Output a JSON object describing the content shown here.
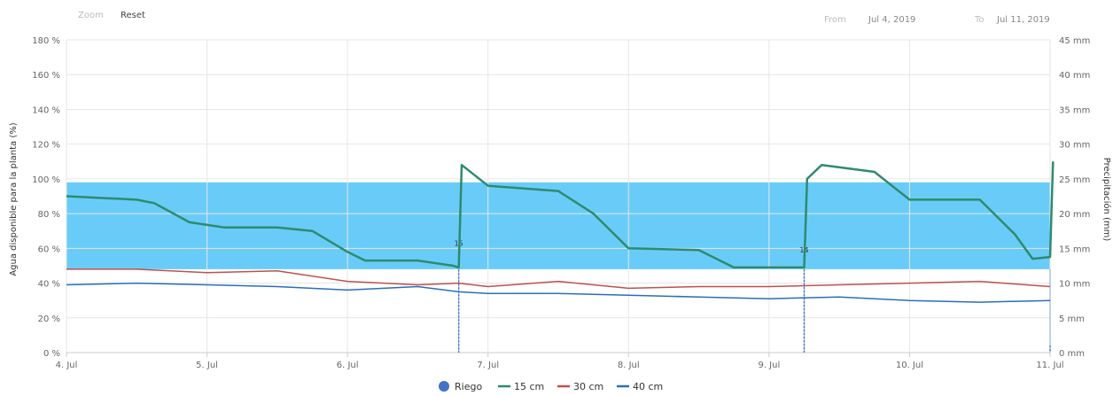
{
  "toolbar": {
    "zoom_label": "Zoom",
    "reset_label": "Reset",
    "from_label": "From",
    "from_value": "Jul 4, 2019",
    "to_label": "To",
    "to_value": "Jul 11, 2019"
  },
  "chart_data": {
    "type": "line",
    "ylabel": "Agua disponible para la planta (%)",
    "y2label": "Precipitación (mm)",
    "ylim": [
      0,
      180
    ],
    "y2lim": [
      0,
      45
    ],
    "xlim": [
      "2019-07-04",
      "2019-07-11"
    ],
    "yticks": [
      "0 %",
      "20 %",
      "40 %",
      "60 %",
      "80 %",
      "100 %",
      "120 %",
      "140 %",
      "160 %",
      "180 %"
    ],
    "y2ticks": [
      "0 mm",
      "5 mm",
      "10 mm",
      "15 mm",
      "20 mm",
      "25 mm",
      "30 mm",
      "35 mm",
      "40 mm",
      "45 mm"
    ],
    "xticks": [
      {
        "x": "2019-07-04",
        "label": "4. Jul"
      },
      {
        "x": "2019-07-05",
        "label": "5. Jul"
      },
      {
        "x": "2019-07-06",
        "label": "6. Jul"
      },
      {
        "x": "2019-07-07",
        "label": "7. Jul"
      },
      {
        "x": "2019-07-08",
        "label": "8. Jul"
      },
      {
        "x": "2019-07-09",
        "label": "9. Jul"
      },
      {
        "x": "2019-07-10",
        "label": "10. Jul"
      },
      {
        "x": "2019-07-11",
        "label": "11. Jul"
      }
    ],
    "band": {
      "from": 48,
      "to": 98,
      "color": "#4fc3f7"
    },
    "grid": true,
    "legend_position": "bottom-center",
    "series": [
      {
        "name": "15 cm",
        "color": "#2e8b6e",
        "axis": "left",
        "points": [
          [
            "2019-07-04 00:00",
            90
          ],
          [
            "2019-07-04 12:00",
            88
          ],
          [
            "2019-07-04 15:00",
            86
          ],
          [
            "2019-07-04 21:00",
            75
          ],
          [
            "2019-07-05 03:00",
            72
          ],
          [
            "2019-07-05 12:00",
            72
          ],
          [
            "2019-07-05 18:00",
            70
          ],
          [
            "2019-07-06 00:00",
            58
          ],
          [
            "2019-07-06 03:00",
            53
          ],
          [
            "2019-07-06 12:00",
            53
          ],
          [
            "2019-07-06 18:00",
            50
          ],
          [
            "2019-07-06 19:00",
            49
          ],
          [
            "2019-07-06 19:30",
            108
          ],
          [
            "2019-07-07 00:00",
            96
          ],
          [
            "2019-07-07 12:00",
            93
          ],
          [
            "2019-07-07 18:00",
            80
          ],
          [
            "2019-07-08 00:00",
            60
          ],
          [
            "2019-07-08 12:00",
            59
          ],
          [
            "2019-07-08 18:00",
            49
          ],
          [
            "2019-07-09 06:00",
            49
          ],
          [
            "2019-07-09 06:30",
            100
          ],
          [
            "2019-07-09 09:00",
            108
          ],
          [
            "2019-07-09 18:00",
            104
          ],
          [
            "2019-07-10 00:00",
            88
          ],
          [
            "2019-07-10 12:00",
            88
          ],
          [
            "2019-07-10 18:00",
            68
          ],
          [
            "2019-07-10 21:00",
            54
          ],
          [
            "2019-07-11 00:00",
            55
          ],
          [
            "2019-07-11 00:30",
            110
          ]
        ]
      },
      {
        "name": "30 cm",
        "color": "#c0504d",
        "axis": "left",
        "points": [
          [
            "2019-07-04 00:00",
            48
          ],
          [
            "2019-07-04 12:00",
            48
          ],
          [
            "2019-07-05 00:00",
            46
          ],
          [
            "2019-07-05 12:00",
            47
          ],
          [
            "2019-07-06 00:00",
            41
          ],
          [
            "2019-07-06 12:00",
            39
          ],
          [
            "2019-07-06 19:00",
            40
          ],
          [
            "2019-07-07 00:00",
            38
          ],
          [
            "2019-07-07 12:00",
            41
          ],
          [
            "2019-07-08 00:00",
            37
          ],
          [
            "2019-07-08 12:00",
            38
          ],
          [
            "2019-07-09 00:00",
            38
          ],
          [
            "2019-07-09 12:00",
            39
          ],
          [
            "2019-07-10 00:00",
            40
          ],
          [
            "2019-07-10 12:00",
            41
          ],
          [
            "2019-07-11 00:00",
            38
          ]
        ]
      },
      {
        "name": "40 cm",
        "color": "#2a6ebb",
        "axis": "left",
        "points": [
          [
            "2019-07-04 00:00",
            39
          ],
          [
            "2019-07-04 12:00",
            40
          ],
          [
            "2019-07-05 00:00",
            39
          ],
          [
            "2019-07-05 12:00",
            38
          ],
          [
            "2019-07-06 00:00",
            36
          ],
          [
            "2019-07-06 12:00",
            38
          ],
          [
            "2019-07-06 19:00",
            35
          ],
          [
            "2019-07-07 00:00",
            34
          ],
          [
            "2019-07-07 12:00",
            34
          ],
          [
            "2019-07-08 00:00",
            33
          ],
          [
            "2019-07-08 12:00",
            32
          ],
          [
            "2019-07-09 00:00",
            31
          ],
          [
            "2019-07-09 12:00",
            32
          ],
          [
            "2019-07-10 00:00",
            30
          ],
          [
            "2019-07-10 12:00",
            29
          ],
          [
            "2019-07-11 00:00",
            30
          ]
        ]
      }
    ],
    "riego": {
      "name": "Riego",
      "color": "#4472c4",
      "axis": "right",
      "events": [
        {
          "x": "2019-07-06 19:00",
          "value": 15,
          "label": "15"
        },
        {
          "x": "2019-07-09 06:00",
          "value": 14,
          "label": "14"
        },
        {
          "x": "2019-07-11 00:00",
          "value": 1,
          "label": ""
        }
      ]
    },
    "legend": [
      {
        "name": "Riego",
        "color": "#4472c4",
        "symbol": "circle"
      },
      {
        "name": "15 cm",
        "color": "#2e8b6e",
        "symbol": "line"
      },
      {
        "name": "30 cm",
        "color": "#c0504d",
        "symbol": "line"
      },
      {
        "name": "40 cm",
        "color": "#2a6ebb",
        "symbol": "line"
      }
    ]
  }
}
